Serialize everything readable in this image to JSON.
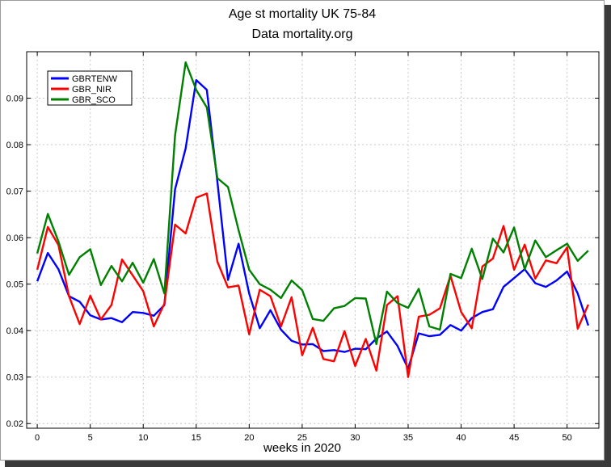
{
  "window": {
    "frame_color": "#9a9a9a",
    "shadow_color": "#3a3a3a"
  },
  "chart_data": {
    "type": "line",
    "title": "Age st mortality UK 75-84",
    "subtitle": "Data mortality.org",
    "xlabel": "weeks in 2020",
    "ylabel": "",
    "xlim": [
      -1,
      53
    ],
    "ylim": [
      0.019,
      0.1
    ],
    "xticks": [
      0,
      5,
      10,
      15,
      20,
      25,
      30,
      35,
      40,
      45,
      50
    ],
    "xtick_labels": [
      "0",
      "5",
      "10",
      "15",
      "20",
      "25",
      "30",
      "35",
      "40",
      "45",
      "50"
    ],
    "yticks": [
      0.02,
      0.03,
      0.04,
      0.05,
      0.06,
      0.07,
      0.08,
      0.09
    ],
    "ytick_labels": [
      "0.02",
      "0.03",
      "0.04",
      "0.05",
      "0.06",
      "0.07",
      "0.08",
      "0.09"
    ],
    "grid": true,
    "legend_position": "top-left",
    "x": [
      0,
      1,
      2,
      3,
      4,
      5,
      6,
      7,
      8,
      9,
      10,
      11,
      12,
      13,
      14,
      15,
      16,
      17,
      18,
      19,
      20,
      21,
      22,
      23,
      24,
      25,
      26,
      27,
      28,
      29,
      30,
      31,
      32,
      33,
      34,
      35,
      36,
      37,
      38,
      39,
      40,
      41,
      42,
      43,
      44,
      45,
      46,
      47,
      48,
      49,
      50,
      51,
      52
    ],
    "series": [
      {
        "name": "GBRTENW",
        "color": "#0000ff",
        "values": [
          0.0506,
          0.0567,
          0.0532,
          0.0474,
          0.0462,
          0.0433,
          0.0424,
          0.0427,
          0.0418,
          0.044,
          0.0438,
          0.0432,
          0.0455,
          0.0704,
          0.0792,
          0.0939,
          0.0918,
          0.072,
          0.0509,
          0.0587,
          0.048,
          0.0405,
          0.0444,
          0.0402,
          0.0378,
          0.037,
          0.0371,
          0.0356,
          0.0358,
          0.0354,
          0.0361,
          0.036,
          0.0383,
          0.0398,
          0.0367,
          0.0318,
          0.0394,
          0.0388,
          0.0391,
          0.0412,
          0.04,
          0.0427,
          0.044,
          0.0446,
          0.0494,
          0.0513,
          0.0532,
          0.0502,
          0.0494,
          0.0508,
          0.0527,
          0.048,
          0.0411
        ]
      },
      {
        "name": "GBR_NIR",
        "color": "#ff0000",
        "values": [
          0.0531,
          0.0623,
          0.0584,
          0.0474,
          0.0414,
          0.0475,
          0.0424,
          0.0455,
          0.0553,
          0.0519,
          0.0485,
          0.0409,
          0.0458,
          0.0628,
          0.0609,
          0.0686,
          0.0695,
          0.0548,
          0.0493,
          0.0497,
          0.0392,
          0.0488,
          0.0474,
          0.0409,
          0.0472,
          0.0347,
          0.0406,
          0.0339,
          0.0334,
          0.0399,
          0.0324,
          0.0382,
          0.0314,
          0.0455,
          0.0474,
          0.03,
          0.043,
          0.0434,
          0.0448,
          0.0518,
          0.044,
          0.0405,
          0.0538,
          0.0555,
          0.0625,
          0.0531,
          0.0585,
          0.0512,
          0.0551,
          0.0545,
          0.0579,
          0.0404,
          0.0456
        ]
      },
      {
        "name": "GBR_SCO",
        "color": "#008000",
        "values": [
          0.0566,
          0.0651,
          0.0592,
          0.052,
          0.0558,
          0.0575,
          0.0498,
          0.0539,
          0.0506,
          0.0546,
          0.0503,
          0.0554,
          0.048,
          0.082,
          0.0977,
          0.0918,
          0.088,
          0.0728,
          0.0709,
          0.0616,
          0.0531,
          0.05,
          0.0488,
          0.047,
          0.0508,
          0.0487,
          0.0425,
          0.0421,
          0.0448,
          0.0453,
          0.047,
          0.0469,
          0.0371,
          0.0484,
          0.0459,
          0.0449,
          0.049,
          0.0409,
          0.0402,
          0.0522,
          0.0513,
          0.0576,
          0.0511,
          0.0598,
          0.0568,
          0.0622,
          0.0532,
          0.0594,
          0.0558,
          0.0573,
          0.0587,
          0.055,
          0.0572
        ]
      }
    ]
  }
}
